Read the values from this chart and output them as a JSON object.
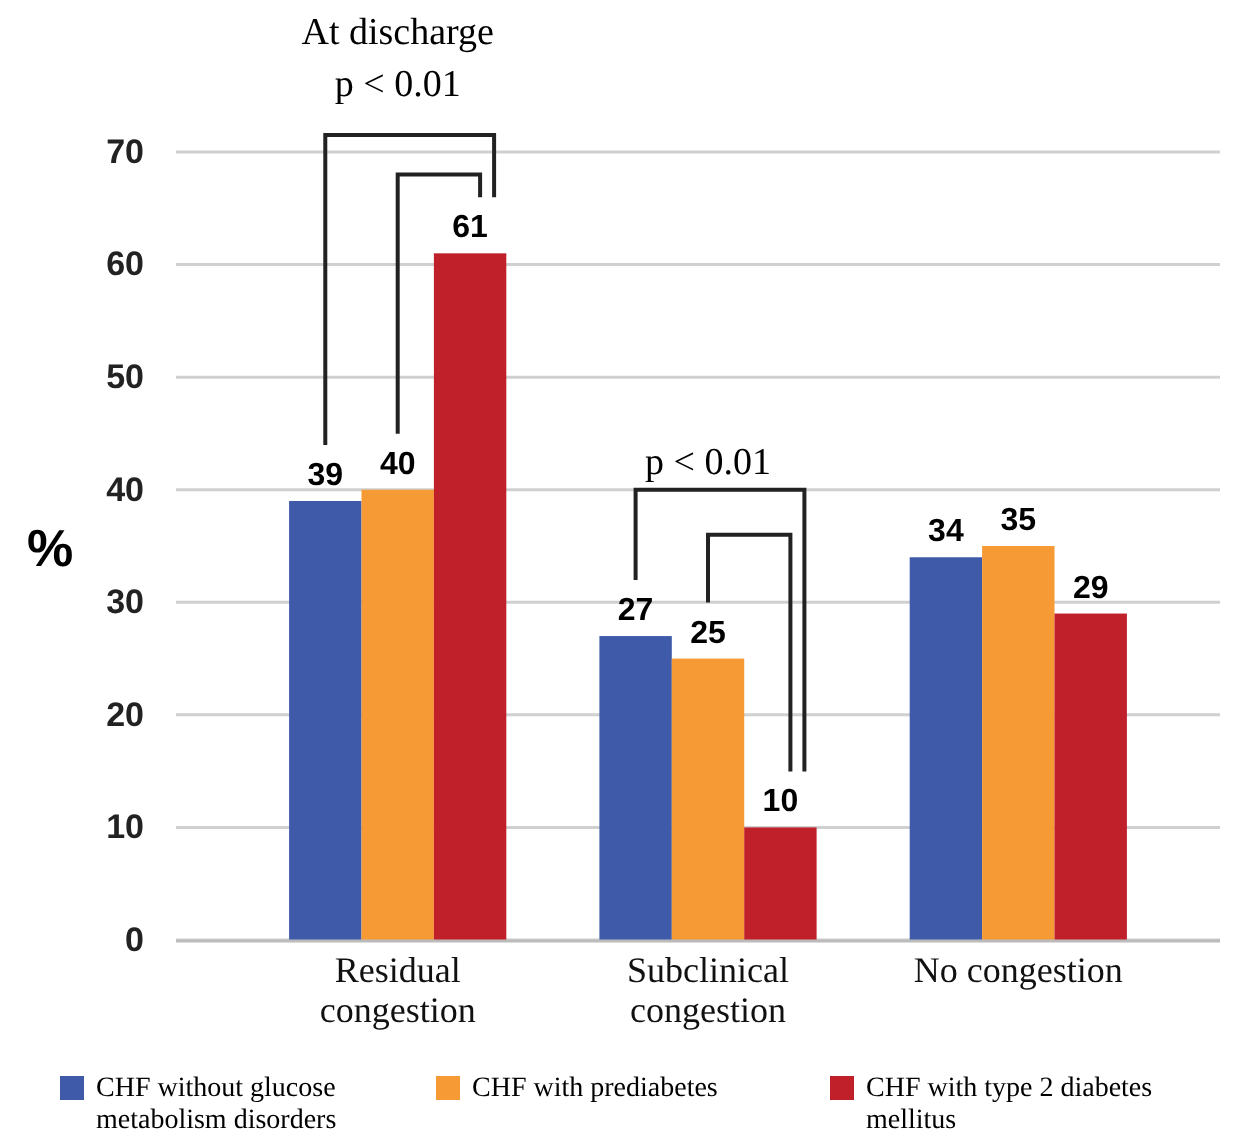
{
  "chart_data": {
    "type": "bar",
    "ylabel": "%",
    "categories": [
      "Residual congestion",
      "Subclinical congestion",
      "No congestion"
    ],
    "series": [
      {
        "name": "CHF without glucose metabolism disorders",
        "color": "#3f5aa8",
        "values": [
          39,
          27,
          34
        ]
      },
      {
        "name": "CHF with prediabetes",
        "color": "#f59a35",
        "values": [
          40,
          25,
          35
        ]
      },
      {
        "name": "CHF with type 2 diabetes mellitus",
        "color": "#c0202a",
        "values": [
          61,
          10,
          29
        ]
      }
    ],
    "ylim": [
      0,
      70
    ],
    "yticks": [
      0,
      10,
      20,
      30,
      40,
      50,
      60,
      70
    ],
    "grid": "y",
    "legend": "bottom",
    "data_labels": true,
    "annotations": [
      "At discharge",
      "p < 0.01",
      "p < 0.01"
    ]
  }
}
